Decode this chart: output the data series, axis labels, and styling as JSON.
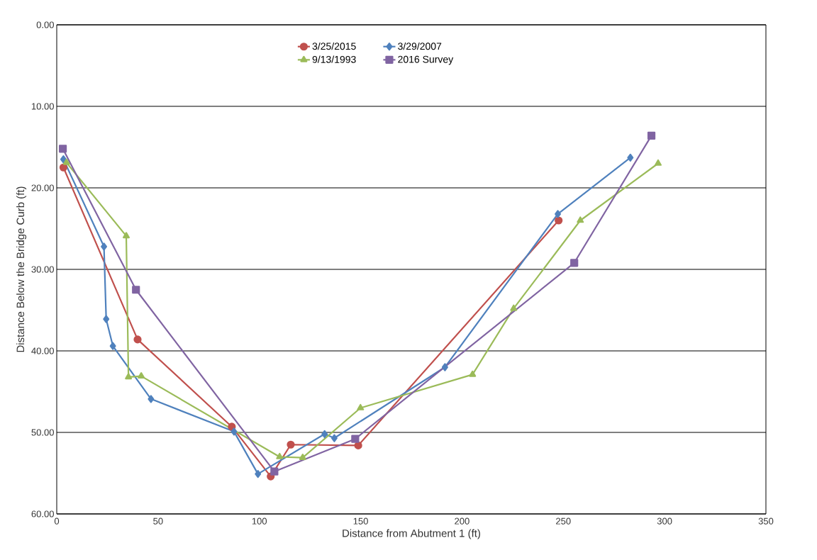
{
  "chart_data": {
    "type": "line",
    "xlabel": "Distance from Abutment 1 (ft)",
    "ylabel": "Distance Below the Bridge Curb (ft)",
    "xlim": [
      0,
      350
    ],
    "xticks": [
      0,
      50,
      100,
      150,
      200,
      250,
      300,
      350
    ],
    "ylim": [
      60,
      0
    ],
    "yticks": [
      {
        "value": 0,
        "label": "0.00"
      },
      {
        "value": 10,
        "label": "10.00"
      },
      {
        "value": 20,
        "label": "20.00"
      },
      {
        "value": 30,
        "label": "30.00"
      },
      {
        "value": 40,
        "label": "40.00"
      },
      {
        "value": 50,
        "label": "50.00"
      },
      {
        "value": 60,
        "label": "60.00"
      }
    ],
    "grid": "y",
    "legend": "top",
    "line_style": "solid",
    "series": [
      {
        "name": "3/25/2015",
        "color": "#c0504d",
        "marker": "circle",
        "x": [
          3.3,
          39.9,
          86.4,
          105.6,
          115.5,
          148.8,
          247.7
        ],
        "values": [
          17.5,
          38.6,
          49.3,
          55.4,
          51.5,
          51.6,
          24.0
        ]
      },
      {
        "name": "3/29/2007",
        "color": "#4f81bd",
        "marker": "diamond",
        "x": [
          3.3,
          23.3,
          24.4,
          27.7,
          46.5,
          87.5,
          99.3,
          132.2,
          137.0,
          191.6,
          247.3,
          283.1
        ],
        "values": [
          16.5,
          27.2,
          36.1,
          39.4,
          45.9,
          49.9,
          55.1,
          50.2,
          50.7,
          42.0,
          23.2,
          16.3
        ]
      },
      {
        "name": "9/13/1993",
        "color": "#9bbb59",
        "marker": "triangle",
        "x": [
          4.8,
          34.3,
          35.4,
          41.7,
          110.0,
          121.4,
          149.9,
          205.2,
          225.5,
          258.4,
          296.8
        ],
        "values": [
          16.9,
          25.9,
          43.2,
          43.1,
          53.0,
          53.1,
          47.0,
          42.9,
          34.8,
          24.0,
          17.0
        ]
      },
      {
        "name": "2016 Survey",
        "color": "#8064a2",
        "marker": "square",
        "x": [
          3.0,
          39.1,
          107.4,
          147.3,
          255.4,
          293.5
        ],
        "values": [
          15.2,
          32.5,
          54.8,
          50.8,
          29.2,
          13.6
        ]
      }
    ]
  }
}
